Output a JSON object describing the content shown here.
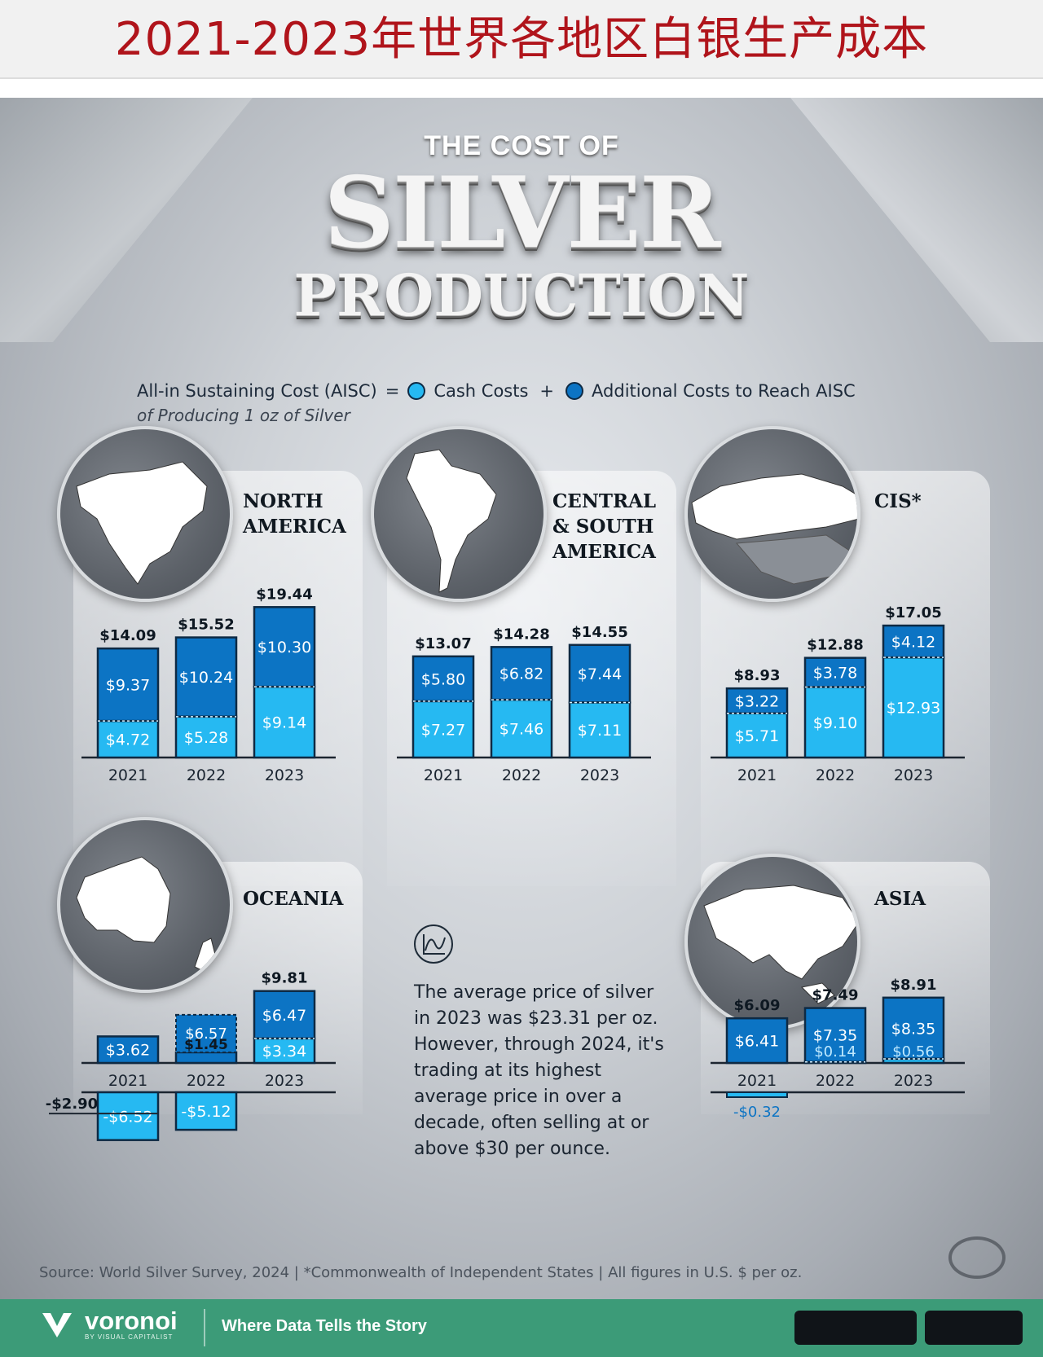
{
  "banner_title": "2021-2023年世界各地区白银生产成本",
  "header": {
    "small": "THE COST OF",
    "big": "SILVER",
    "mid": "PRODUCTION"
  },
  "legend": {
    "aisc": "All-in Sustaining Cost (AISC)",
    "equals": "=",
    "plus": "+",
    "cash": "Cash Costs",
    "additional": "Additional Costs to Reach AISC",
    "sub": "of Producing 1 oz of Silver"
  },
  "colors": {
    "cash": "#26b9f2",
    "additional": "#0c74c4",
    "outline": "#0e2a44",
    "baseline": "#1c2530"
  },
  "regions": {
    "north_america": {
      "title_lines": [
        "NORTH",
        "AMERICA"
      ]
    },
    "central_south_america": {
      "title_lines": [
        "CENTRAL",
        "& SOUTH",
        "AMERICA"
      ]
    },
    "cis": {
      "title_lines": [
        "CIS*"
      ]
    },
    "oceania": {
      "title_lines": [
        "OCEANIA"
      ]
    },
    "asia": {
      "title_lines": [
        "ASIA"
      ]
    }
  },
  "chart_data": [
    {
      "type": "bar",
      "region": "North America",
      "categories": [
        "2021",
        "2022",
        "2023"
      ],
      "series": [
        {
          "name": "Cash Costs",
          "values": [
            4.72,
            5.28,
            9.14
          ]
        },
        {
          "name": "Additional Costs to Reach AISC",
          "values": [
            9.37,
            10.24,
            10.3
          ]
        }
      ],
      "totals": [
        14.09,
        15.52,
        19.44
      ],
      "labels": {
        "cash": [
          "$4.72",
          "$5.28",
          "$9.14"
        ],
        "additional": [
          "$9.37",
          "$10.24",
          "$10.30"
        ],
        "totals": [
          "$14.09",
          "$15.52",
          "$19.44"
        ]
      }
    },
    {
      "type": "bar",
      "region": "Central & South America",
      "categories": [
        "2021",
        "2022",
        "2023"
      ],
      "series": [
        {
          "name": "Cash Costs",
          "values": [
            7.27,
            7.46,
            7.11
          ]
        },
        {
          "name": "Additional Costs to Reach AISC",
          "values": [
            5.8,
            6.82,
            7.44
          ]
        }
      ],
      "totals": [
        13.07,
        14.28,
        14.55
      ],
      "labels": {
        "cash": [
          "$7.27",
          "$7.46",
          "$7.11"
        ],
        "additional": [
          "$5.80",
          "$6.82",
          "$7.44"
        ],
        "totals": [
          "$13.07",
          "$14.28",
          "$14.55"
        ]
      }
    },
    {
      "type": "bar",
      "region": "CIS*",
      "categories": [
        "2021",
        "2022",
        "2023"
      ],
      "series": [
        {
          "name": "Cash Costs",
          "values": [
            5.71,
            9.1,
            12.93
          ]
        },
        {
          "name": "Additional Costs to Reach AISC",
          "values": [
            3.22,
            3.78,
            4.12
          ]
        }
      ],
      "totals": [
        8.93,
        12.88,
        17.05
      ],
      "labels": {
        "cash": [
          "$5.71",
          "$9.10",
          "$12.93"
        ],
        "additional": [
          "$3.22",
          "$3.78",
          "$4.12"
        ],
        "totals": [
          "$8.93",
          "$12.88",
          "$17.05"
        ]
      }
    },
    {
      "type": "bar",
      "region": "Oceania",
      "categories": [
        "2021",
        "2022",
        "2023"
      ],
      "series": [
        {
          "name": "Cash Costs",
          "values": [
            -6.52,
            -5.12,
            3.34
          ]
        },
        {
          "name": "Additional Costs to Reach AISC",
          "values": [
            3.62,
            6.57,
            6.47
          ]
        }
      ],
      "totals": [
        -2.9,
        1.45,
        9.81
      ],
      "labels": {
        "cash": [
          "-$6.52",
          "-$5.12",
          "$3.34"
        ],
        "additional": [
          "$3.62",
          "$6.57",
          "$6.47"
        ],
        "totals": [
          "-$2.90",
          "$1.45",
          "$9.81"
        ]
      }
    },
    {
      "type": "bar",
      "region": "Asia",
      "categories": [
        "2021",
        "2022",
        "2023"
      ],
      "series": [
        {
          "name": "Cash Costs",
          "values": [
            -0.32,
            0.14,
            0.56
          ]
        },
        {
          "name": "Additional Costs to Reach AISC",
          "values": [
            6.41,
            7.35,
            8.35
          ]
        }
      ],
      "totals": [
        6.09,
        7.49,
        8.91
      ],
      "labels": {
        "cash": [
          "-$0.32",
          "$0.14",
          "$0.56"
        ],
        "additional": [
          "$6.41",
          "$7.35",
          "$8.35"
        ],
        "totals": [
          "$6.09",
          "$7.49",
          "$8.91"
        ]
      }
    }
  ],
  "note": "The average price of silver in 2023 was $23.31 per oz. However, through 2024, it's trading at its highest average price in over a decade, often selling at or above $30 per ounce.",
  "source": "Source: World Silver Survey, 2024 | *Commonwealth of Independent States | All figures in U.S. $ per oz.",
  "footer": {
    "brand": "voronoi",
    "by": "BY VISUAL CAPITALIST",
    "tagline": "Where Data Tells the Story"
  }
}
